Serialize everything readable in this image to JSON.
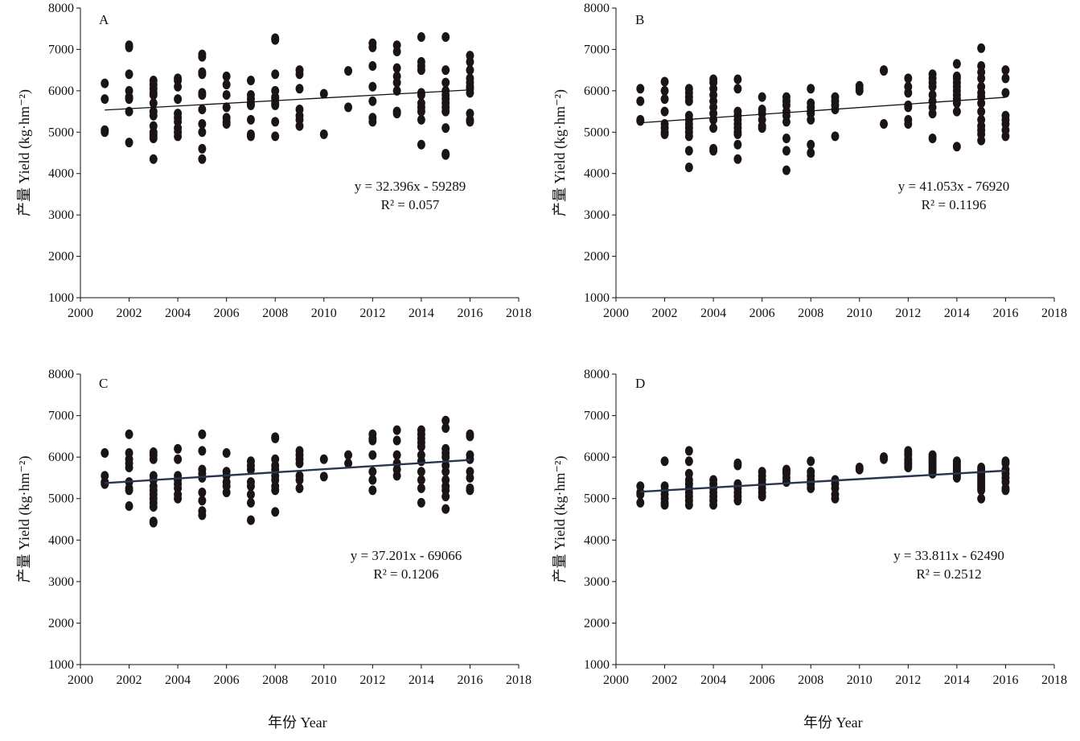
{
  "figure": {
    "x_axis_title": "年份 Year",
    "y_axis_title": "产量 Yield (kg·hm⁻²)"
  },
  "chart_data": [
    {
      "type": "scatter",
      "panel_label": "A",
      "xlabel": "年份 Year",
      "ylabel": "产量 Yield (kg·hm⁻²)",
      "xlim": [
        2000,
        2018
      ],
      "ylim": [
        1000,
        8000
      ],
      "xticks": [
        "2000",
        "2002",
        "2004",
        "2006",
        "2008",
        "2010",
        "2012",
        "2014",
        "2016",
        "2018"
      ],
      "yticks": [
        "1000",
        "2000",
        "3000",
        "4000",
        "5000",
        "6000",
        "7000",
        "8000"
      ],
      "grid": false,
      "trendline": {
        "slope": 32.396,
        "intercept": -59289,
        "equation": "y = 32.396x - 59289",
        "r2": "R² = 0.057",
        "r2_value": "0.057"
      },
      "points": [
        {
          "year": 2001,
          "yields": [
            6180,
            5800,
            5050,
            5000
          ]
        },
        {
          "year": 2002,
          "yields": [
            7100,
            7050,
            6400,
            6000,
            5850,
            5800,
            5500,
            4750
          ]
        },
        {
          "year": 2003,
          "yields": [
            6250,
            6150,
            6050,
            5950,
            5900,
            5700,
            5500,
            5400,
            5150,
            5000,
            4950,
            4900,
            4850,
            4350
          ]
        },
        {
          "year": 2004,
          "yields": [
            6300,
            6250,
            6100,
            5800,
            5450,
            5350,
            5250,
            5100,
            5000,
            4900
          ]
        },
        {
          "year": 2005,
          "yields": [
            6880,
            6820,
            6450,
            6400,
            5950,
            5900,
            5550,
            5200,
            5000,
            4600,
            4350
          ]
        },
        {
          "year": 2006,
          "yields": [
            6350,
            6150,
            5900,
            5600,
            5350,
            5250,
            5200
          ]
        },
        {
          "year": 2007,
          "yields": [
            6250,
            5900,
            5800,
            5700,
            5650,
            5300,
            4950,
            4900
          ]
        },
        {
          "year": 2008,
          "yields": [
            7270,
            7230,
            6400,
            6000,
            5850,
            5800,
            5700,
            5650,
            5250,
            4900
          ]
        },
        {
          "year": 2009,
          "yields": [
            6500,
            6400,
            6050,
            5550,
            5400,
            5300,
            5150
          ]
        },
        {
          "year": 2010,
          "yields": [
            5930,
            4950
          ]
        },
        {
          "year": 2011,
          "yields": [
            6480,
            5600
          ]
        },
        {
          "year": 2012,
          "yields": [
            7150,
            7050,
            6600,
            6100,
            5750,
            5350,
            5250
          ]
        },
        {
          "year": 2013,
          "yields": [
            7100,
            6950,
            6550,
            6350,
            6200,
            6000,
            5500,
            5450
          ]
        },
        {
          "year": 2014,
          "yields": [
            7300,
            6700,
            6600,
            6500,
            5950,
            5900,
            5700,
            5600,
            5500,
            5300,
            4700
          ]
        },
        {
          "year": 2015,
          "yields": [
            7300,
            6500,
            6200,
            6000,
            5900,
            5800,
            5700,
            5600,
            5500,
            5100,
            4480,
            4450
          ]
        },
        {
          "year": 2016,
          "yields": [
            6850,
            6700,
            6500,
            6300,
            6200,
            6100,
            6050,
            5950,
            5450,
            5300,
            5250
          ]
        }
      ]
    },
    {
      "type": "scatter",
      "panel_label": "B",
      "xlabel": "年份 Year",
      "ylabel": "产量 Yield (kg·hm⁻²)",
      "xlim": [
        2000,
        2018
      ],
      "ylim": [
        1000,
        8000
      ],
      "xticks": [
        "2000",
        "2002",
        "2004",
        "2006",
        "2008",
        "2010",
        "2012",
        "2014",
        "2016",
        "2018"
      ],
      "yticks": [
        "1000",
        "2000",
        "3000",
        "4000",
        "5000",
        "6000",
        "7000",
        "8000"
      ],
      "grid": false,
      "trendline": {
        "slope": 41.053,
        "intercept": -76920,
        "equation": "y = 41.053x - 76920",
        "r2": "R² = 0.1196",
        "r2_value": "0.1196"
      },
      "points": [
        {
          "year": 2001,
          "yields": [
            6050,
            5750,
            5300,
            5270
          ]
        },
        {
          "year": 2002,
          "yields": [
            6220,
            6000,
            5800,
            5500,
            5200,
            5100,
            5000,
            4950
          ]
        },
        {
          "year": 2003,
          "yields": [
            6050,
            5950,
            5850,
            5750,
            5400,
            5300,
            5200,
            5100,
            5000,
            4900,
            4550,
            4150
          ]
        },
        {
          "year": 2004,
          "yields": [
            6280,
            6200,
            6050,
            5900,
            5750,
            5600,
            5450,
            5300,
            5100,
            4600,
            4550
          ]
        },
        {
          "year": 2005,
          "yields": [
            6280,
            6050,
            5500,
            5400,
            5300,
            5200,
            5100,
            5000,
            4950,
            4700,
            4350
          ]
        },
        {
          "year": 2006,
          "yields": [
            5850,
            5550,
            5450,
            5300,
            5150,
            5100
          ]
        },
        {
          "year": 2007,
          "yields": [
            5850,
            5750,
            5650,
            5500,
            5400,
            5250,
            4850,
            4550,
            4080
          ]
        },
        {
          "year": 2008,
          "yields": [
            6050,
            5700,
            5600,
            5500,
            5450,
            5300,
            4700,
            4500
          ]
        },
        {
          "year": 2009,
          "yields": [
            5850,
            5750,
            5650,
            5550,
            4900
          ]
        },
        {
          "year": 2010,
          "yields": [
            6120,
            6050,
            6000
          ]
        },
        {
          "year": 2011,
          "yields": [
            6500,
            6480,
            5200
          ]
        },
        {
          "year": 2012,
          "yields": [
            6300,
            6100,
            5950,
            5650,
            5600,
            5300,
            5200
          ]
        },
        {
          "year": 2013,
          "yields": [
            6400,
            6300,
            6200,
            6100,
            5900,
            5750,
            5600,
            5450,
            4850
          ]
        },
        {
          "year": 2014,
          "yields": [
            6650,
            6350,
            6300,
            6200,
            6100,
            6000,
            5900,
            5800,
            5700,
            5500,
            4650
          ]
        },
        {
          "year": 2015,
          "yields": [
            7030,
            6600,
            6450,
            6300,
            6100,
            5950,
            5850,
            5700,
            5500,
            5300,
            5150,
            5050,
            4950,
            4800
          ]
        },
        {
          "year": 2016,
          "yields": [
            6500,
            6300,
            5950,
            5400,
            5300,
            5200,
            5050,
            4900
          ]
        }
      ]
    },
    {
      "type": "scatter",
      "panel_label": "C",
      "xlabel": "年份 Year",
      "ylabel": "产量 Yield (kg·hm⁻²)",
      "xlim": [
        2000,
        2018
      ],
      "ylim": [
        1000,
        8000
      ],
      "xticks": [
        "2000",
        "2002",
        "2004",
        "2006",
        "2008",
        "2010",
        "2012",
        "2014",
        "2016",
        "2018"
      ],
      "yticks": [
        "1000",
        "2000",
        "3000",
        "4000",
        "5000",
        "6000",
        "7000",
        "8000"
      ],
      "grid": false,
      "trendline": {
        "slope": 37.201,
        "intercept": -69066,
        "equation": "y = 37.201x - 69066",
        "r2": "R² = 0.1206",
        "r2_value": "0.1206"
      },
      "points": [
        {
          "year": 2001,
          "yields": [
            6100,
            5550,
            5400,
            5350
          ]
        },
        {
          "year": 2002,
          "yields": [
            6550,
            6100,
            5950,
            5850,
            5750,
            5400,
            5250,
            5200,
            4820
          ]
        },
        {
          "year": 2003,
          "yields": [
            6120,
            6050,
            5950,
            5550,
            5450,
            5300,
            5200,
            5100,
            5000,
            4900,
            4800,
            4450,
            4420
          ]
        },
        {
          "year": 2004,
          "yields": [
            6200,
            5950,
            5550,
            5450,
            5350,
            5250,
            5100,
            5000
          ]
        },
        {
          "year": 2005,
          "yields": [
            6550,
            6150,
            5700,
            5600,
            5500,
            5150,
            4950,
            4700,
            4600
          ]
        },
        {
          "year": 2006,
          "yields": [
            6100,
            5650,
            5550,
            5400,
            5300,
            5150
          ]
        },
        {
          "year": 2007,
          "yields": [
            5900,
            5800,
            5700,
            5400,
            5300,
            5100,
            4900,
            4480
          ]
        },
        {
          "year": 2008,
          "yields": [
            6480,
            6450,
            5950,
            5800,
            5700,
            5550,
            5450,
            5300,
            5200,
            4680
          ]
        },
        {
          "year": 2009,
          "yields": [
            6150,
            6050,
            5950,
            5850,
            5550,
            5450,
            5250
          ]
        },
        {
          "year": 2010,
          "yields": [
            5950,
            5530
          ]
        },
        {
          "year": 2011,
          "yields": [
            6050,
            5850
          ]
        },
        {
          "year": 2012,
          "yields": [
            6550,
            6450,
            6400,
            6050,
            5650,
            5450,
            5200
          ]
        },
        {
          "year": 2013,
          "yields": [
            6650,
            6400,
            6050,
            5850,
            5700,
            5550
          ]
        },
        {
          "year": 2014,
          "yields": [
            6650,
            6550,
            6450,
            6350,
            6250,
            6050,
            5900,
            5650,
            5450,
            5250,
            4900
          ]
        },
        {
          "year": 2015,
          "yields": [
            6880,
            6700,
            6200,
            6100,
            6000,
            5800,
            5650,
            5450,
            5300,
            5200,
            5050,
            4750
          ]
        },
        {
          "year": 2016,
          "yields": [
            6550,
            6500,
            6050,
            5950,
            5650,
            5500,
            5250,
            5200
          ]
        }
      ]
    },
    {
      "type": "scatter",
      "panel_label": "D",
      "xlabel": "年份 Year",
      "ylabel": "产量 Yield (kg·hm⁻²)",
      "xlim": [
        2000,
        2018
      ],
      "ylim": [
        1000,
        8000
      ],
      "xticks": [
        "2000",
        "2002",
        "2004",
        "2006",
        "2008",
        "2010",
        "2012",
        "2014",
        "2016",
        "2018"
      ],
      "yticks": [
        "1000",
        "2000",
        "3000",
        "4000",
        "5000",
        "6000",
        "7000",
        "8000"
      ],
      "grid": false,
      "trendline": {
        "slope": 33.811,
        "intercept": -62490,
        "equation": "y = 33.811x - 62490",
        "r2": "R² = 0.2512",
        "r2_value": "0.2512"
      },
      "points": [
        {
          "year": 2001,
          "yields": [
            5300,
            5150,
            5100,
            4900
          ]
        },
        {
          "year": 2002,
          "yields": [
            5900,
            5300,
            5200,
            5100,
            5000,
            4900,
            4850
          ]
        },
        {
          "year": 2003,
          "yields": [
            6150,
            5900,
            5600,
            5450,
            5350,
            5250,
            5150,
            5050,
            4950,
            4850
          ]
        },
        {
          "year": 2004,
          "yields": [
            5450,
            5350,
            5250,
            5150,
            5050,
            4950,
            4850
          ]
        },
        {
          "year": 2005,
          "yields": [
            5850,
            5800,
            5350,
            5250,
            5150,
            5050,
            4950
          ]
        },
        {
          "year": 2006,
          "yields": [
            5650,
            5550,
            5450,
            5350,
            5250,
            5150,
            5050
          ]
        },
        {
          "year": 2007,
          "yields": [
            5700,
            5650,
            5600,
            5500,
            5400
          ]
        },
        {
          "year": 2008,
          "yields": [
            5900,
            5650,
            5550,
            5450,
            5350,
            5250
          ]
        },
        {
          "year": 2009,
          "yields": [
            5450,
            5350,
            5250,
            5100,
            5000
          ]
        },
        {
          "year": 2010,
          "yields": [
            5750,
            5700
          ]
        },
        {
          "year": 2011,
          "yields": [
            6000,
            5950
          ]
        },
        {
          "year": 2012,
          "yields": [
            6150,
            6100,
            6050,
            5950,
            5900,
            5850,
            5800,
            5750
          ]
        },
        {
          "year": 2013,
          "yields": [
            6050,
            6000,
            5950,
            5900,
            5850,
            5800,
            5750,
            5700,
            5650,
            5600
          ]
        },
        {
          "year": 2014,
          "yields": [
            5900,
            5850,
            5800,
            5750,
            5700,
            5650,
            5600,
            5550,
            5500
          ]
        },
        {
          "year": 2015,
          "yields": [
            5750,
            5700,
            5650,
            5600,
            5550,
            5500,
            5450,
            5400,
            5350,
            5300,
            5250,
            5200,
            5000
          ]
        },
        {
          "year": 2016,
          "yields": [
            5900,
            5850,
            5700,
            5600,
            5500,
            5400,
            5250,
            5200
          ]
        }
      ]
    }
  ]
}
